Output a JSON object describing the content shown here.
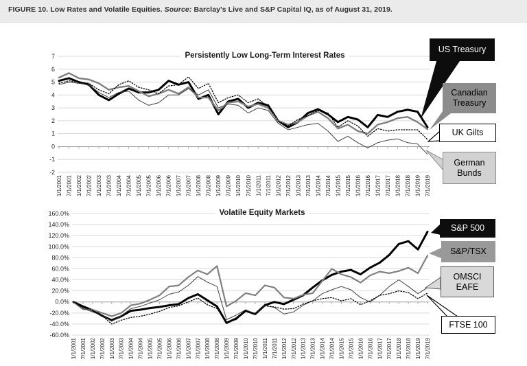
{
  "caption": {
    "figure_label": "FIGURE 10.",
    "title": "Low Rates and Volatile Equities.",
    "source_label": "Source:",
    "source_text": "Barclay's Live and S&P Capital IQ, as of August 31, 2019."
  },
  "colors": {
    "caption_band_bg": "#ebebeb",
    "grid": "#d9d9d9",
    "axis": "#a6a6a6",
    "line_black": "#000000",
    "line_gray": "#7f7f7f",
    "line_thin_dark": "#404040",
    "callout_black_bg": "#0d0d0d",
    "callout_gray_bg": "#8c8c8c",
    "callout_medium_gray_bg": "#999999",
    "callout_light_gray_bg": "#d9d9d9"
  },
  "chart_data": [
    {
      "type": "line",
      "title": "Persistently Low Long-Term Interest Rates",
      "xlabel": "",
      "ylabel": "",
      "ylim": [
        -2,
        7
      ],
      "grid": true,
      "legend_position": "right-callouts",
      "yticks": [
        {
          "value": 7,
          "label": "7"
        },
        {
          "value": 6,
          "label": "6"
        },
        {
          "value": 5,
          "label": "5"
        },
        {
          "value": 4,
          "label": "4"
        },
        {
          "value": 3,
          "label": "3"
        },
        {
          "value": 2,
          "label": "2"
        },
        {
          "value": 1,
          "label": "1"
        },
        {
          "value": 0,
          "label": "0"
        },
        {
          "value": -1,
          "label": "-1"
        },
        {
          "value": -2,
          "label": "-2"
        }
      ],
      "categories": [
        "1/1/2001",
        "7/1/2001",
        "1/1/2002",
        "7/1/2002",
        "1/1/2003",
        "7/1/2003",
        "1/1/2004",
        "7/1/2004",
        "1/1/2005",
        "7/1/2005",
        "1/1/2006",
        "7/1/2006",
        "1/1/2007",
        "7/1/2007",
        "1/1/2008",
        "7/1/2008",
        "1/1/2009",
        "7/1/2009",
        "1/1/2010",
        "7/1/2010",
        "1/1/2011",
        "7/1/2011",
        "1/1/2012",
        "7/1/2012",
        "1/1/2013",
        "7/1/2013",
        "1/1/2014",
        "7/1/2014",
        "1/1/2015",
        "7/1/2015",
        "1/1/2016",
        "7/1/2016",
        "1/1/2017",
        "7/1/2017",
        "1/1/2018",
        "7/1/2018",
        "1/1/2019",
        "7/1/2019"
      ],
      "series": [
        {
          "name": "US Treasury",
          "values": [
            5.1,
            5.3,
            5.0,
            4.8,
            4.0,
            3.6,
            4.1,
            4.5,
            4.2,
            4.2,
            4.4,
            5.1,
            4.8,
            5.0,
            3.7,
            4.0,
            2.5,
            3.5,
            3.7,
            3.0,
            3.4,
            3.2,
            2.0,
            1.5,
            1.9,
            2.6,
            2.9,
            2.5,
            1.9,
            2.3,
            2.1,
            1.5,
            2.45,
            2.3,
            2.7,
            2.85,
            2.7,
            1.5
          ]
        },
        {
          "name": "Canadian Treasury",
          "values": [
            5.35,
            5.7,
            5.3,
            5.2,
            4.9,
            4.4,
            4.6,
            4.7,
            4.3,
            3.9,
            4.1,
            4.4,
            4.1,
            4.6,
            3.8,
            3.8,
            2.8,
            3.4,
            3.5,
            3.1,
            3.3,
            3.0,
            2.0,
            1.7,
            1.9,
            2.4,
            2.7,
            2.2,
            1.4,
            1.7,
            1.2,
            1.0,
            1.7,
            1.9,
            2.2,
            2.3,
            1.9,
            1.35
          ]
        },
        {
          "name": "UK Gilts",
          "values": [
            4.9,
            5.1,
            5.0,
            4.9,
            4.4,
            4.1,
            4.8,
            5.1,
            4.6,
            4.4,
            4.1,
            4.7,
            4.8,
            5.4,
            4.5,
            4.9,
            3.4,
            3.8,
            4.0,
            3.4,
            3.7,
            3.1,
            2.0,
            1.6,
            2.1,
            2.4,
            2.8,
            2.6,
            1.5,
            2.0,
            1.6,
            0.8,
            1.4,
            1.2,
            1.3,
            1.3,
            1.3,
            0.55
          ]
        },
        {
          "name": "German Bunds",
          "values": [
            4.8,
            5.0,
            4.9,
            4.8,
            4.2,
            3.8,
            4.2,
            4.3,
            3.6,
            3.2,
            3.4,
            4.0,
            4.0,
            4.5,
            4.0,
            4.4,
            3.0,
            3.3,
            3.2,
            2.6,
            3.0,
            2.8,
            1.8,
            1.3,
            1.5,
            1.7,
            1.8,
            1.2,
            0.4,
            0.8,
            0.3,
            -0.1,
            0.3,
            0.5,
            0.6,
            0.3,
            0.2,
            -0.6
          ]
        }
      ],
      "callouts": [
        {
          "label": "US Treasury"
        },
        {
          "label": "Canadian Treasury"
        },
        {
          "label": "UK Gilts"
        },
        {
          "label": "German Bunds"
        }
      ]
    },
    {
      "type": "line",
      "title": "Volatile Equity Markets",
      "xlabel": "",
      "ylabel": "",
      "ylim": [
        -60,
        160
      ],
      "grid": true,
      "legend_position": "right-callouts",
      "yticks": [
        {
          "value": 160,
          "label": "160.0%"
        },
        {
          "value": 140,
          "label": "140.0%"
        },
        {
          "value": 120,
          "label": "120.0%"
        },
        {
          "value": 100,
          "label": "100.0%"
        },
        {
          "value": 80,
          "label": "80.0%"
        },
        {
          "value": 60,
          "label": "60.0%"
        },
        {
          "value": 40,
          "label": "40.0%"
        },
        {
          "value": 20,
          "label": "20.0%"
        },
        {
          "value": 0,
          "label": "0.0%"
        },
        {
          "value": -20,
          "label": "-20.0%"
        },
        {
          "value": -40,
          "label": "-40.0%"
        },
        {
          "value": -60,
          "label": "-60.0%"
        }
      ],
      "categories": [
        "1/1/2001",
        "7/1/2001",
        "1/1/2002",
        "7/1/2002",
        "1/1/2003",
        "7/1/2003",
        "1/1/2004",
        "7/1/2004",
        "1/1/2005",
        "7/1/2005",
        "1/1/2006",
        "7/1/2006",
        "1/1/2007",
        "7/1/2007",
        "1/1/2008",
        "7/1/2008",
        "1/1/2009",
        "7/1/2009",
        "1/1/2010",
        "7/1/2010",
        "1/1/2011",
        "7/1/2011",
        "1/1/2012",
        "7/1/2012",
        "1/1/2013",
        "7/1/2013",
        "1/1/2014",
        "7/1/2014",
        "1/1/2015",
        "7/1/2015",
        "1/1/2016",
        "7/1/2016",
        "1/1/2017",
        "7/1/2017",
        "1/1/2018",
        "7/1/2018",
        "1/1/2019",
        "7/1/2019"
      ],
      "series": [
        {
          "name": "S&P 500",
          "values": [
            0,
            -8,
            -15,
            -25,
            -33,
            -26,
            -16,
            -14,
            -11,
            -9,
            -6,
            -4,
            7,
            14,
            3,
            -8,
            -38,
            -30,
            -16,
            -22,
            -6,
            0,
            -4,
            4,
            12,
            26,
            39,
            49,
            55,
            58,
            50,
            62,
            71,
            85,
            105,
            110,
            95,
            127
          ]
        },
        {
          "name": "S&P/TSX",
          "values": [
            0,
            -13,
            -14,
            -20,
            -26,
            -20,
            -6,
            -3,
            4,
            12,
            28,
            30,
            45,
            57,
            50,
            65,
            -8,
            2,
            16,
            12,
            30,
            26,
            8,
            6,
            13,
            16,
            38,
            60,
            50,
            45,
            35,
            48,
            55,
            52,
            56,
            62,
            52,
            84
          ]
        },
        {
          "name": "OMSCI EAFE",
          "values": [
            0,
            -12,
            -18,
            -25,
            -35,
            -25,
            -12,
            -8,
            -2,
            4,
            14,
            18,
            30,
            46,
            36,
            28,
            -32,
            -24,
            -14,
            -22,
            -6,
            -10,
            -22,
            -18,
            -6,
            2,
            15,
            22,
            28,
            22,
            8,
            0,
            12,
            28,
            40,
            28,
            15,
            26
          ]
        },
        {
          "name": "FTSE 100",
          "values": [
            0,
            -10,
            -15,
            -25,
            -40,
            -33,
            -28,
            -26,
            -22,
            -17,
            -10,
            -7,
            0,
            7,
            -5,
            -12,
            -36,
            -32,
            -16,
            -22,
            -7,
            -9,
            -13,
            -12,
            -4,
            2,
            6,
            8,
            2,
            6,
            -5,
            2,
            12,
            15,
            20,
            17,
            6,
            16
          ]
        }
      ],
      "callouts": [
        {
          "label": "S&P 500"
        },
        {
          "label": "S&P/TSX"
        },
        {
          "label": "OMSCI EAFE"
        },
        {
          "label": "FTSE 100"
        }
      ]
    }
  ]
}
